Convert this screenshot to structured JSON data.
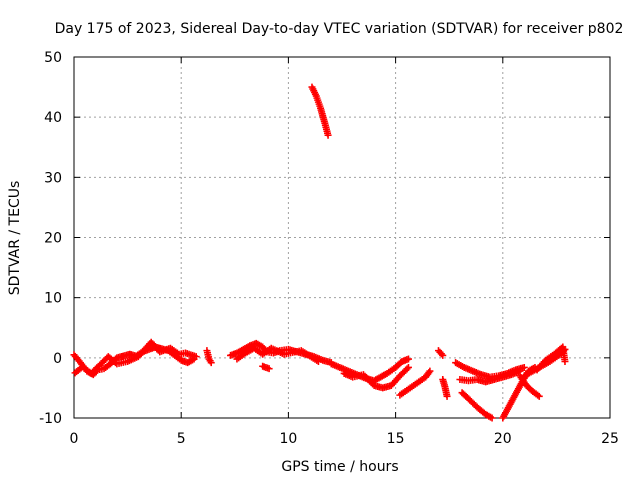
{
  "chart_data": {
    "type": "scatter",
    "title": "Day 175 of 2023, Sidereal Day-to-day VTEC variation (SDTVAR) for receiver p802",
    "xlabel": "GPS time / hours",
    "ylabel": "SDTVAR / TECUs",
    "xlim": [
      0,
      25
    ],
    "ylim": [
      -10,
      50
    ],
    "x_ticks": [
      0,
      5,
      10,
      15,
      20,
      25
    ],
    "y_ticks": [
      -10,
      0,
      10,
      20,
      30,
      40,
      50
    ],
    "grid": true,
    "marker": "plus",
    "series_color": "#ff0000",
    "series": [
      {
        "name": "SDTVAR",
        "segments": [
          [
            [
              0.0,
              0.5
            ],
            [
              0.3,
              -0.8
            ],
            [
              0.6,
              -2.2
            ],
            [
              0.9,
              -2.8
            ],
            [
              1.1,
              -2.0
            ],
            [
              1.4,
              -1.8
            ],
            [
              1.7,
              -1.0
            ],
            [
              2.0,
              0.0
            ],
            [
              2.3,
              0.3
            ],
            [
              2.6,
              0.6
            ],
            [
              2.9,
              0.3
            ],
            [
              3.2,
              1.0
            ],
            [
              3.5,
              1.4
            ],
            [
              3.8,
              1.8
            ],
            [
              4.1,
              1.5
            ],
            [
              4.4,
              1.2
            ],
            [
              4.7,
              0.4
            ],
            [
              5.0,
              -0.4
            ],
            [
              5.3,
              -0.8
            ],
            [
              5.6,
              -0.2
            ]
          ],
          [
            [
              0.05,
              -2.5
            ],
            [
              0.4,
              -1.5
            ],
            [
              0.8,
              -2.6
            ],
            [
              1.2,
              -1.2
            ],
            [
              1.6,
              0.2
            ],
            [
              2.0,
              -1.0
            ],
            [
              2.5,
              -0.6
            ],
            [
              3.0,
              0.2
            ],
            [
              3.6,
              2.6
            ],
            [
              4.0,
              1.0
            ],
            [
              4.5,
              1.6
            ],
            [
              4.9,
              0.6
            ],
            [
              5.2,
              0.8
            ],
            [
              5.7,
              0.2
            ]
          ],
          [
            [
              6.2,
              1.2
            ],
            [
              6.3,
              -0.2
            ],
            [
              6.4,
              -0.8
            ]
          ],
          [
            [
              7.3,
              0.4
            ],
            [
              7.6,
              0.8
            ],
            [
              7.9,
              1.4
            ],
            [
              8.2,
              2.0
            ],
            [
              8.5,
              2.4
            ],
            [
              8.8,
              1.8
            ],
            [
              9.0,
              1.0
            ],
            [
              9.3,
              0.8
            ],
            [
              9.6,
              1.2
            ],
            [
              10.0,
              1.4
            ],
            [
              10.4,
              1.0
            ],
            [
              10.8,
              0.6
            ],
            [
              11.2,
              0.2
            ],
            [
              11.6,
              -0.4
            ],
            [
              12.0,
              -0.8
            ]
          ],
          [
            [
              7.6,
              -0.2
            ],
            [
              8.0,
              0.8
            ],
            [
              8.4,
              1.6
            ],
            [
              8.8,
              0.6
            ],
            [
              9.2,
              1.6
            ],
            [
              9.8,
              0.6
            ],
            [
              10.6,
              1.2
            ],
            [
              11.4,
              -0.6
            ]
          ],
          [
            [
              8.8,
              -1.4
            ],
            [
              9.1,
              -1.8
            ]
          ],
          [
            [
              11.1,
              45.0
            ],
            [
              11.3,
              43.5
            ],
            [
              11.5,
              41.5
            ],
            [
              11.7,
              39.0
            ],
            [
              11.85,
              37.0
            ]
          ],
          [
            [
              12.0,
              -1.0
            ],
            [
              12.4,
              -1.6
            ],
            [
              12.8,
              -2.2
            ],
            [
              13.2,
              -2.8
            ],
            [
              13.6,
              -3.4
            ],
            [
              14.0,
              -3.8
            ],
            [
              14.3,
              -3.2
            ],
            [
              14.6,
              -2.6
            ],
            [
              15.0,
              -1.6
            ],
            [
              15.3,
              -0.6
            ],
            [
              15.6,
              -0.2
            ]
          ],
          [
            [
              12.6,
              -2.6
            ],
            [
              13.0,
              -3.2
            ],
            [
              13.5,
              -2.8
            ],
            [
              14.0,
              -4.6
            ],
            [
              14.4,
              -5.0
            ],
            [
              14.8,
              -4.6
            ],
            [
              15.2,
              -3.0
            ],
            [
              15.6,
              -1.6
            ]
          ],
          [
            [
              15.2,
              -6.2
            ],
            [
              15.6,
              -5.2
            ],
            [
              16.0,
              -4.2
            ],
            [
              16.4,
              -3.2
            ],
            [
              16.6,
              -2.2
            ]
          ],
          [
            [
              17.0,
              1.2
            ],
            [
              17.2,
              0.4
            ]
          ],
          [
            [
              17.2,
              -3.6
            ],
            [
              17.3,
              -4.8
            ],
            [
              17.4,
              -6.4
            ]
          ],
          [
            [
              17.8,
              -0.8
            ],
            [
              18.2,
              -1.6
            ],
            [
              18.6,
              -2.2
            ],
            [
              19.0,
              -2.8
            ],
            [
              19.4,
              -3.2
            ],
            [
              19.8,
              -3.0
            ],
            [
              20.2,
              -2.6
            ],
            [
              20.6,
              -2.0
            ],
            [
              21.0,
              -1.6
            ]
          ],
          [
            [
              18.0,
              -3.6
            ],
            [
              18.4,
              -3.8
            ],
            [
              18.8,
              -3.6
            ],
            [
              19.2,
              -4.0
            ],
            [
              19.6,
              -3.6
            ],
            [
              20.0,
              -3.2
            ],
            [
              20.4,
              -2.8
            ],
            [
              20.8,
              -2.2
            ]
          ],
          [
            [
              18.1,
              -5.8
            ],
            [
              18.4,
              -6.8
            ],
            [
              18.8,
              -8.2
            ],
            [
              19.2,
              -9.4
            ],
            [
              19.5,
              -10.0
            ]
          ],
          [
            [
              20.0,
              -10.0
            ],
            [
              20.3,
              -8.0
            ],
            [
              20.6,
              -6.0
            ],
            [
              20.9,
              -4.0
            ],
            [
              21.2,
              -2.2
            ],
            [
              21.5,
              -1.6
            ]
          ],
          [
            [
              20.8,
              -3.0
            ],
            [
              21.1,
              -4.6
            ],
            [
              21.4,
              -5.6
            ],
            [
              21.7,
              -6.4
            ]
          ],
          [
            [
              21.0,
              -3.0
            ],
            [
              21.4,
              -2.2
            ],
            [
              21.8,
              -1.4
            ],
            [
              22.2,
              -0.6
            ],
            [
              22.6,
              0.4
            ],
            [
              22.9,
              1.4
            ]
          ],
          [
            [
              21.6,
              -2.0
            ],
            [
              22.0,
              -0.4
            ],
            [
              22.4,
              0.6
            ],
            [
              22.8,
              1.8
            ],
            [
              22.9,
              -0.6
            ]
          ]
        ]
      }
    ]
  }
}
